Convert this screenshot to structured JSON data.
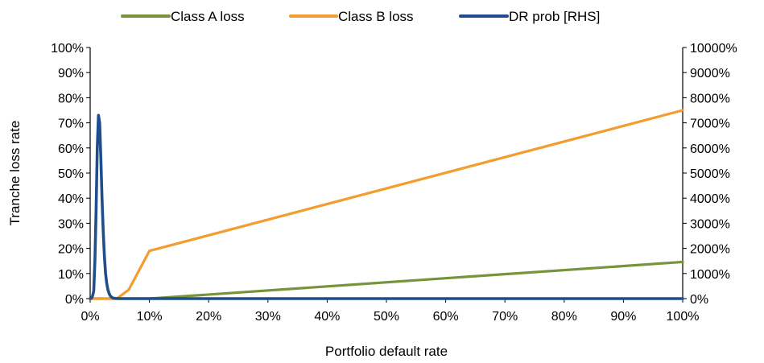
{
  "chart_data": {
    "type": "line",
    "title": "",
    "xlabel": "Portfolio default rate",
    "ylabel": "Tranche loss rate",
    "y2label": "",
    "xlim": [
      0,
      100
    ],
    "ylim": [
      0,
      100
    ],
    "y2lim": [
      0,
      10000
    ],
    "x_ticks": [
      0,
      10,
      20,
      30,
      40,
      50,
      60,
      70,
      80,
      90,
      100
    ],
    "y_ticks": [
      0,
      10,
      20,
      30,
      40,
      50,
      60,
      70,
      80,
      90,
      100
    ],
    "y2_ticks": [
      0,
      1000,
      2000,
      3000,
      4000,
      5000,
      6000,
      7000,
      8000,
      9000,
      10000
    ],
    "x_tick_labels": [
      "0%",
      "10%",
      "20%",
      "30%",
      "40%",
      "50%",
      "60%",
      "70%",
      "80%",
      "90%",
      "100%"
    ],
    "y_tick_labels": [
      "0%",
      "10%",
      "20%",
      "30%",
      "40%",
      "50%",
      "60%",
      "70%",
      "80%",
      "90%",
      "100%"
    ],
    "y2_tick_labels": [
      "0%",
      "1000%",
      "2000%",
      "3000%",
      "4000%",
      "5000%",
      "6000%",
      "7000%",
      "8000%",
      "9000%",
      "10000%"
    ],
    "grid": false,
    "legend_position": "top",
    "series": [
      {
        "name": "Class A loss",
        "color": "#77933c",
        "axis": "left",
        "x": [
          0,
          10,
          100
        ],
        "y": [
          0,
          0,
          14.6
        ]
      },
      {
        "name": "Class B loss",
        "color": "#f39c2f",
        "axis": "left",
        "x": [
          0,
          4.5,
          6.5,
          10,
          100
        ],
        "y": [
          0,
          0,
          3.5,
          19,
          75
        ]
      },
      {
        "name": "DR prob [RHS]",
        "color": "#1f4e8c",
        "axis": "right",
        "x": [
          0,
          0.2,
          0.4,
          0.6,
          0.8,
          1.0,
          1.2,
          1.4,
          1.6,
          1.8,
          2.0,
          2.2,
          2.4,
          2.6,
          2.8,
          3.0,
          3.2,
          3.4,
          3.6,
          3.8,
          4.0,
          4.5,
          5.0,
          100
        ],
        "y": [
          0,
          10,
          100,
          300,
          1500,
          3500,
          6000,
          7300,
          7000,
          5600,
          4000,
          2700,
          1700,
          1000,
          600,
          350,
          200,
          110,
          60,
          30,
          15,
          5,
          0,
          0
        ]
      }
    ]
  }
}
